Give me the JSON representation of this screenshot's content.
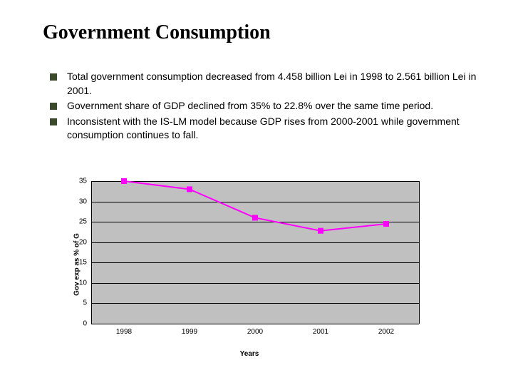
{
  "title": "Government Consumption",
  "bullets": [
    "Total government consumption decreased from 4.458 billion Lei in 1998 to 2.561 billion Lei in 2001.",
    "Government share of GDP declined from 35% to 22.8% over the same time period.",
    "Inconsistent with the IS-LM model because GDP rises from 2000-2001 while government consumption continues to fall."
  ],
  "chart": {
    "type": "line",
    "ylabel": "Gov exp as % of G",
    "xlabel": "Years",
    "categories": [
      "1998",
      "1999",
      "2000",
      "2001",
      "2002"
    ],
    "values": [
      35,
      33,
      26,
      22.8,
      24.5
    ],
    "ylim": [
      0,
      35
    ],
    "ytick_step": 5,
    "plot_background": "#c0c0c0",
    "grid_color": "#000000",
    "line_color": "#ff00ff",
    "marker_shape": "square",
    "marker_size": 8,
    "line_width": 2,
    "label_fontsize": 10,
    "tick_fontsize": 10
  }
}
